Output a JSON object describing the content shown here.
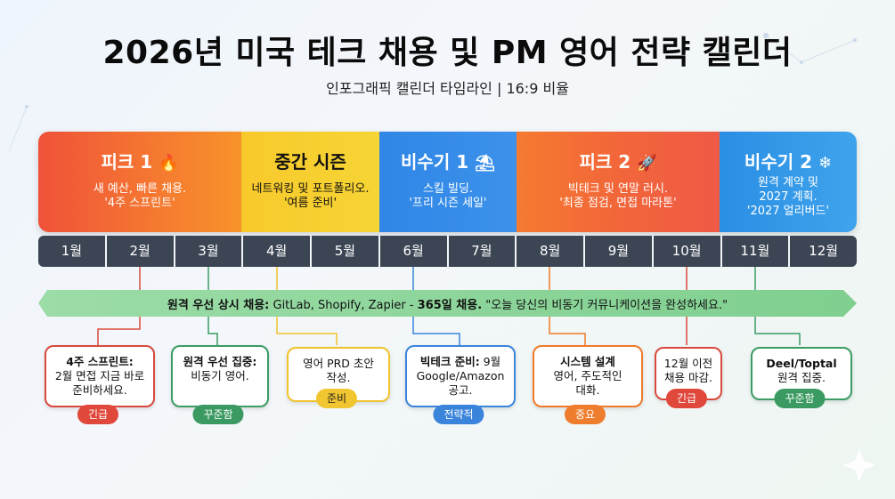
{
  "header": {
    "title": "2026년 미국 테크 채용 및 PM 영어 전략 캘린더",
    "subtitle": "인포그래픽 캘린더 타임라인 | 16:9 비율"
  },
  "seasons": [
    {
      "name": "피크 1",
      "emoji": "🔥",
      "desc": "새 예산, 빠른 채용.\n'4주 스프린트'"
    },
    {
      "name": "중간 시즌",
      "emoji": "",
      "desc": "네트워킹 및 포트폴리오.\n'여름 준비'"
    },
    {
      "name": "비수기 1",
      "emoji": "⛱",
      "desc": "스킬 빌딩.\n'프리 시즌 세일'"
    },
    {
      "name": "피크 2",
      "emoji": "🚀",
      "desc": "빅테크 및 연말 러시.\n'최종 점검, 면접 마라톤'"
    },
    {
      "name": "비수기 2",
      "emoji": "❄",
      "desc": "원격 계약 및\n2027 계획.\n'2027 얼리버드'"
    }
  ],
  "months": [
    "1월",
    "2월",
    "3월",
    "4월",
    "5월",
    "6월",
    "7월",
    "8월",
    "9월",
    "10월",
    "11월",
    "12월"
  ],
  "banner": {
    "lead": "원격 우선 상시 채용:",
    "companies": " GitLab, Shopify, Zapier - ",
    "emphasis": "365일 채용.",
    "tail": " \"오늘 당신의 비동기 커뮤니케이션을 완성하세요.\""
  },
  "cards": [
    {
      "bold": "4주 스프린트:",
      "text": "\n2월 면접 지금 바로\n준비하세요.",
      "tag": "긴급",
      "color": "red"
    },
    {
      "bold": "원격 우선 집중:",
      "text": "\n비동기 영어.",
      "tag": "꾸준함",
      "color": "green"
    },
    {
      "bold": "",
      "text": "영어 PRD 초안\n작성.",
      "tag": "준비",
      "color": "yellow"
    },
    {
      "bold": "빅테크 준비:",
      "text": " 9월\nGoogle/Amazon\n공고.",
      "tag": "전략적",
      "color": "blue"
    },
    {
      "bold": "시스템 설계",
      "text": "\n영어, 주도적인\n대화.",
      "tag": "중요",
      "color": "orange"
    },
    {
      "bold": "",
      "text": "12월 이전\n채용 마감.",
      "tag": "긴급",
      "color": "red"
    },
    {
      "bold": "Deel/Toptal",
      "text": "\n원격 집중.",
      "tag": "꾸준함",
      "color": "green"
    }
  ],
  "colors": {
    "red": "#d94a3d",
    "green": "#3b9c64",
    "yellow": "#f1c32b",
    "blue": "#3b86db",
    "orange": "#ef7a2a",
    "month_bar": "#3b4553",
    "banner": "#7fcf8f"
  }
}
